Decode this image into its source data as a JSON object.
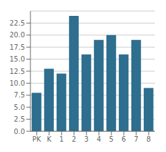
{
  "chart_data": {
    "type": "bar",
    "categories": [
      "PK",
      "K",
      "1",
      "2",
      "3",
      "4",
      "5",
      "6",
      "7",
      "8"
    ],
    "values": [
      8,
      13,
      12,
      24,
      16,
      19,
      20,
      16,
      19,
      9
    ],
    "color": "#2e6e8e",
    "ylim": [
      0,
      25
    ],
    "yticks": [
      {
        "value": 0,
        "label": "0.0"
      },
      2.5,
      {
        "value": 5,
        "label": "5.0"
      },
      7.5,
      {
        "value": 10,
        "label": "10.0"
      },
      12.5,
      {
        "value": 15,
        "label": "15.0"
      },
      17.5,
      {
        "value": 20,
        "label": "20.0"
      },
      22.5
    ],
    "grid": true
  }
}
